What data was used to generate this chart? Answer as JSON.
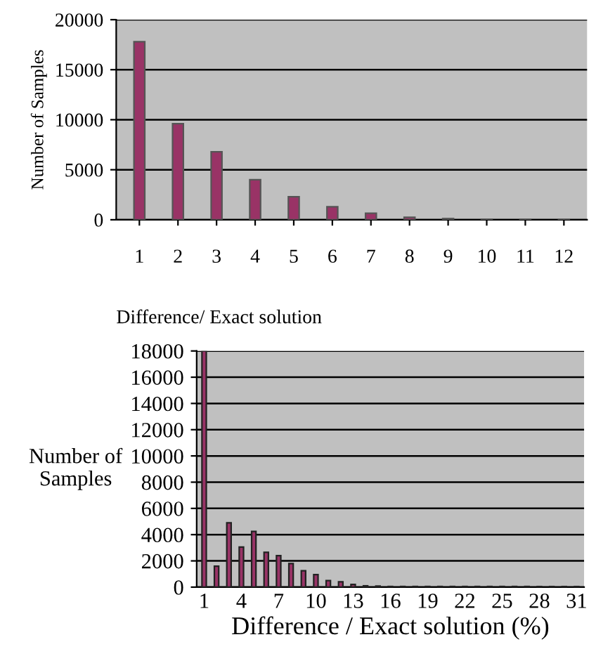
{
  "chart_data": [
    {
      "type": "bar",
      "xlabel": "Difference/ Exact solution",
      "ylabel": "Number of Samples",
      "categories": [
        "1",
        "2",
        "3",
        "4",
        "5",
        "6",
        "7",
        "8",
        "9",
        "10",
        "11",
        "12"
      ],
      "values": [
        17800,
        9600,
        6800,
        4000,
        2300,
        1300,
        650,
        250,
        120,
        30,
        10,
        5
      ],
      "color": "#993366",
      "ylim": [
        0,
        20000
      ],
      "yticks": [
        0,
        5000,
        10000,
        15000,
        20000
      ],
      "grid": "y"
    },
    {
      "type": "bar",
      "xlabel": "Difference / Exact solution (%)",
      "ylabel": "Number of\nSamples",
      "categories": [
        "1",
        null,
        null,
        "4",
        null,
        null,
        "7",
        null,
        null,
        "10",
        null,
        null,
        "13",
        null,
        null,
        "16",
        null,
        null,
        "19",
        null,
        null,
        "22",
        null,
        null,
        "25",
        null,
        null,
        "28",
        null,
        null,
        "31"
      ],
      "values": [
        18000,
        1600,
        4900,
        3050,
        4250,
        2650,
        2400,
        1800,
        1250,
        950,
        500,
        400,
        200,
        100,
        80,
        50,
        50,
        50,
        50,
        50,
        50,
        50,
        50,
        50,
        50,
        50,
        50,
        50,
        50,
        50,
        50
      ],
      "color": "#993366",
      "ylim": [
        0,
        18000
      ],
      "yticks": [
        0,
        2000,
        4000,
        6000,
        8000,
        10000,
        12000,
        14000,
        16000,
        18000
      ],
      "grid": "y"
    }
  ]
}
